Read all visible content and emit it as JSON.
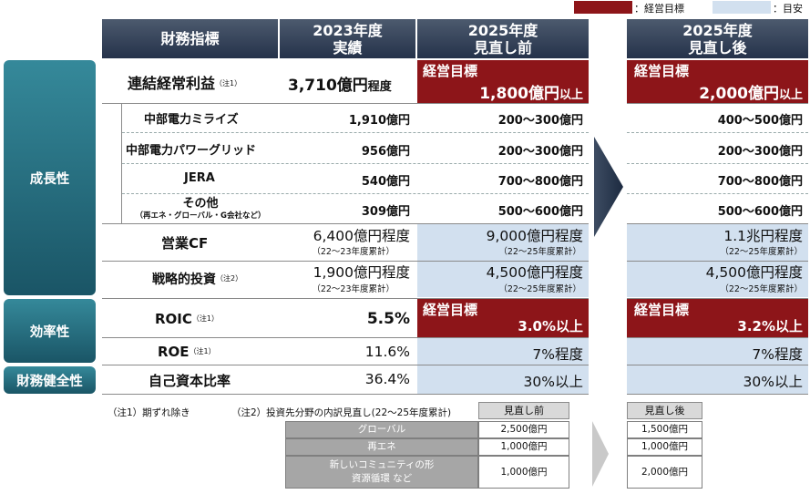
{
  "legend": {
    "target_color": "#8d1519",
    "guide_color": "#d2e0ef",
    "target_label": "：経営目標",
    "guide_label": "：目安"
  },
  "header": {
    "col_metric": "財務指標",
    "col_2023": "2023年度\n実績",
    "col_2025_before": "2025年度\n見直し前",
    "col_2025_after": "2025年度\n見直し後"
  },
  "categories": {
    "growth": "成長性",
    "efficiency": "効率性",
    "soundness": "財務健全性"
  },
  "rows": {
    "consolidated": {
      "label": "連結経常利益",
      "note": "（注1）",
      "v2023": "3,710億円",
      "v2023_suffix": "程度",
      "target_tag": "経営目標",
      "before": "1,800億円",
      "before_suffix": "以上",
      "after": "2,000億円",
      "after_suffix": "以上"
    },
    "miraiz": {
      "label": "中部電力ミライズ",
      "v2023": "1,910億円",
      "before": "200～300億円",
      "after": "400～500億円"
    },
    "grid": {
      "label": "中部電力パワーグリッド",
      "v2023": "956億円",
      "before": "200～300億円",
      "after": "200～300億円"
    },
    "jera": {
      "label": "JERA",
      "v2023": "540億円",
      "before": "700～800億円",
      "after": "700～800億円"
    },
    "other": {
      "label": "その他",
      "sublabel": "（再エネ・グローバル・G会社など）",
      "v2023": "309億円",
      "before": "500～600億円",
      "after": "500～600億円"
    },
    "cf": {
      "label": "営業CF",
      "v2023": "6,400億円程度",
      "v2023_sub": "（22～23年度累計）",
      "before": "9,000億円程度",
      "before_sub": "（22～25年度累計）",
      "after": "1.1兆円程度",
      "after_sub": "（22～25年度累計）"
    },
    "invest": {
      "label": "戦略的投資",
      "note": "（注2）",
      "v2023": "1,900億円程度",
      "v2023_sub": "（22～23年度累計）",
      "before": "4,500億円程度",
      "before_sub": "（22～25年度累計）",
      "after": "4,500億円程度",
      "after_sub": "（22～25年度累計）"
    },
    "roic": {
      "label": "ROIC",
      "note": "（注1）",
      "v2023": "5.5%",
      "target_tag": "経営目標",
      "before": "3.0%以上",
      "after": "3.2%以上"
    },
    "roe": {
      "label": "ROE",
      "note": "（注1）",
      "v2023": "11.6%",
      "before": "7%程度",
      "after": "7%程度"
    },
    "equity": {
      "label": "自己資本比率",
      "v2023": "36.4%",
      "before": "30%以上",
      "after": "30%以上"
    }
  },
  "notes": {
    "n1": "（注1）期ずれ除き",
    "n2": "（注2）投資先分野の内訳見直し(22～25年度累計)"
  },
  "breakdown": {
    "head_before": "見直し前",
    "head_after": "見直し後",
    "items": [
      {
        "label": "グローバル",
        "before": "2,500億円",
        "after": "1,500億円"
      },
      {
        "label": "再エネ",
        "before": "1,000億円",
        "after": "1,000億円"
      },
      {
        "label": "新しいコミュニティの形\n資源循環 など",
        "before": "1,000億円",
        "after": "2,000億円"
      }
    ]
  }
}
